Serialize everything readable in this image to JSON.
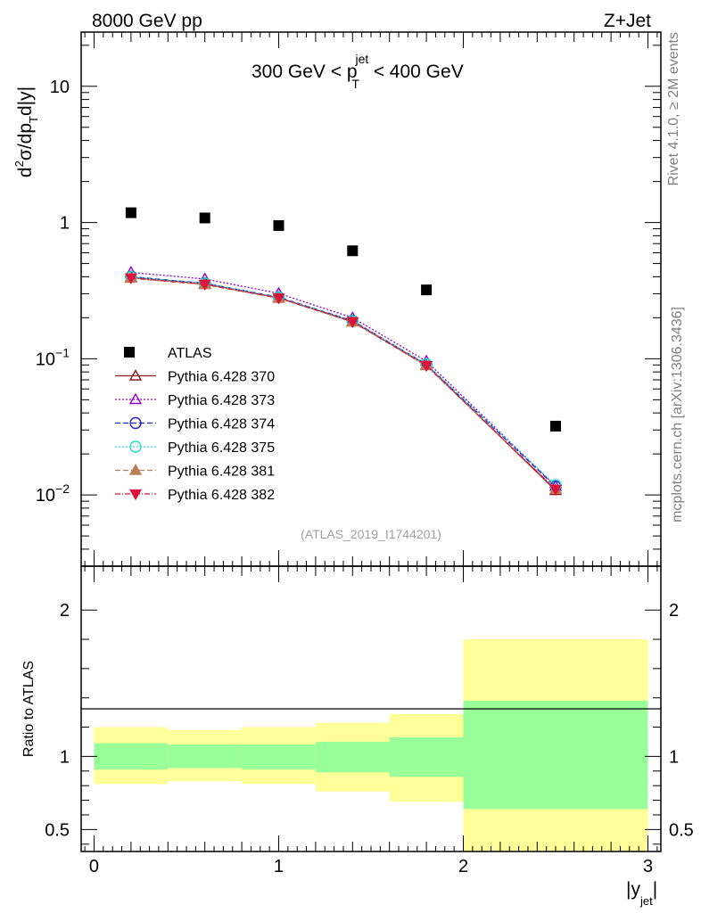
{
  "header": {
    "left": "8000 GeV pp",
    "right": "Z+Jet"
  },
  "side_labels": {
    "rivet": "Rivet 4.1.0, ≥ 2M events",
    "mcplots": "mcplots.cern.ch [arXiv:1306.3436]"
  },
  "chart_data": {
    "type": "scatter",
    "title": {
      "main": "300 GeV < p",
      "sup": "jet",
      "sub": "T",
      "tail": " < 400 GeV"
    },
    "analysis_tag": "(ATLAS_2019_I1744201)",
    "ylabel": {
      "base": "d",
      "pow": "2",
      "mid": "σ/dp",
      "sub": "T",
      "tail": "d|y|"
    },
    "xlabel": {
      "base": "|y",
      "sub": "jet",
      "tail": "|"
    },
    "ratio_ylabel": "Ratio to ATLAS",
    "xlim": [
      -0.07,
      3.07
    ],
    "ylim_log": [
      0.003,
      25
    ],
    "ratio_ylim": [
      0.35,
      2.3
    ],
    "xticks": [
      "0",
      "1",
      "2",
      "3"
    ],
    "yticks_main": [
      {
        "value": 0.01,
        "base": "10",
        "exp": "−2"
      },
      {
        "value": 0.1,
        "base": "10",
        "exp": "−1"
      },
      {
        "value": 1,
        "base": "1",
        "exp": ""
      },
      {
        "value": 10,
        "base": "10",
        "exp": ""
      }
    ],
    "yticks_ratio": [
      "0.5",
      "1",
      "2"
    ],
    "bins": [
      {
        "low": 0.0,
        "high": 0.4
      },
      {
        "low": 0.4,
        "high": 0.8
      },
      {
        "low": 0.8,
        "high": 1.2
      },
      {
        "low": 1.2,
        "high": 1.6
      },
      {
        "low": 1.6,
        "high": 2.0
      },
      {
        "low": 2.0,
        "high": 3.0
      }
    ],
    "data": {
      "name": "ATLAS",
      "x": [
        0.2,
        0.6,
        1.0,
        1.4,
        1.8,
        2.5
      ],
      "y": [
        1.18,
        1.08,
        0.95,
        0.62,
        0.32,
        0.032
      ],
      "ratio_stat_band": [
        [
          0.91,
          1.09
        ],
        [
          0.92,
          1.08
        ],
        [
          0.91,
          1.08
        ],
        [
          0.89,
          1.1
        ],
        [
          0.86,
          1.13
        ],
        [
          0.64,
          1.38
        ]
      ],
      "ratio_total_band": [
        [
          0.81,
          1.2
        ],
        [
          0.83,
          1.18
        ],
        [
          0.81,
          1.2
        ],
        [
          0.76,
          1.23
        ],
        [
          0.69,
          1.29
        ],
        [
          0.35,
          1.8
        ]
      ]
    },
    "series": [
      {
        "name": "Pythia 6.428 370",
        "color": "#8b1a1a",
        "dash": "",
        "marker": "triangle-open",
        "values": [
          0.395,
          0.355,
          0.28,
          0.188,
          0.09,
          0.0108
        ]
      },
      {
        "name": "Pythia 6.428 373",
        "color": "#9400d3",
        "dash": "2,2",
        "marker": "triangle-open",
        "values": [
          0.43,
          0.385,
          0.302,
          0.2,
          0.096,
          0.0116
        ]
      },
      {
        "name": "Pythia 6.428 374",
        "color": "#2222cc",
        "dash": "6,3",
        "marker": "circle-open",
        "values": [
          0.4,
          0.358,
          0.283,
          0.19,
          0.091,
          0.0115
        ]
      },
      {
        "name": "Pythia 6.428 375",
        "color": "#1de0c0",
        "dash": "2,2",
        "marker": "circle-open",
        "values": [
          0.398,
          0.357,
          0.282,
          0.189,
          0.091,
          0.0118
        ]
      },
      {
        "name": "Pythia 6.428 381",
        "color": "#b8805a",
        "dash": "6,3",
        "marker": "triangle-filled",
        "values": [
          0.39,
          0.35,
          0.278,
          0.186,
          0.089,
          0.011
        ]
      },
      {
        "name": "Pythia 6.428 382",
        "color": "#dc143c",
        "dash": "6,2,1,2",
        "marker": "triangle-down-filled",
        "values": [
          0.392,
          0.352,
          0.279,
          0.187,
          0.089,
          0.011
        ]
      }
    ],
    "colors": {
      "data": "#000000",
      "stat_band": "#99ff99",
      "total_band": "#ffff99",
      "side_text": "#808080"
    }
  }
}
